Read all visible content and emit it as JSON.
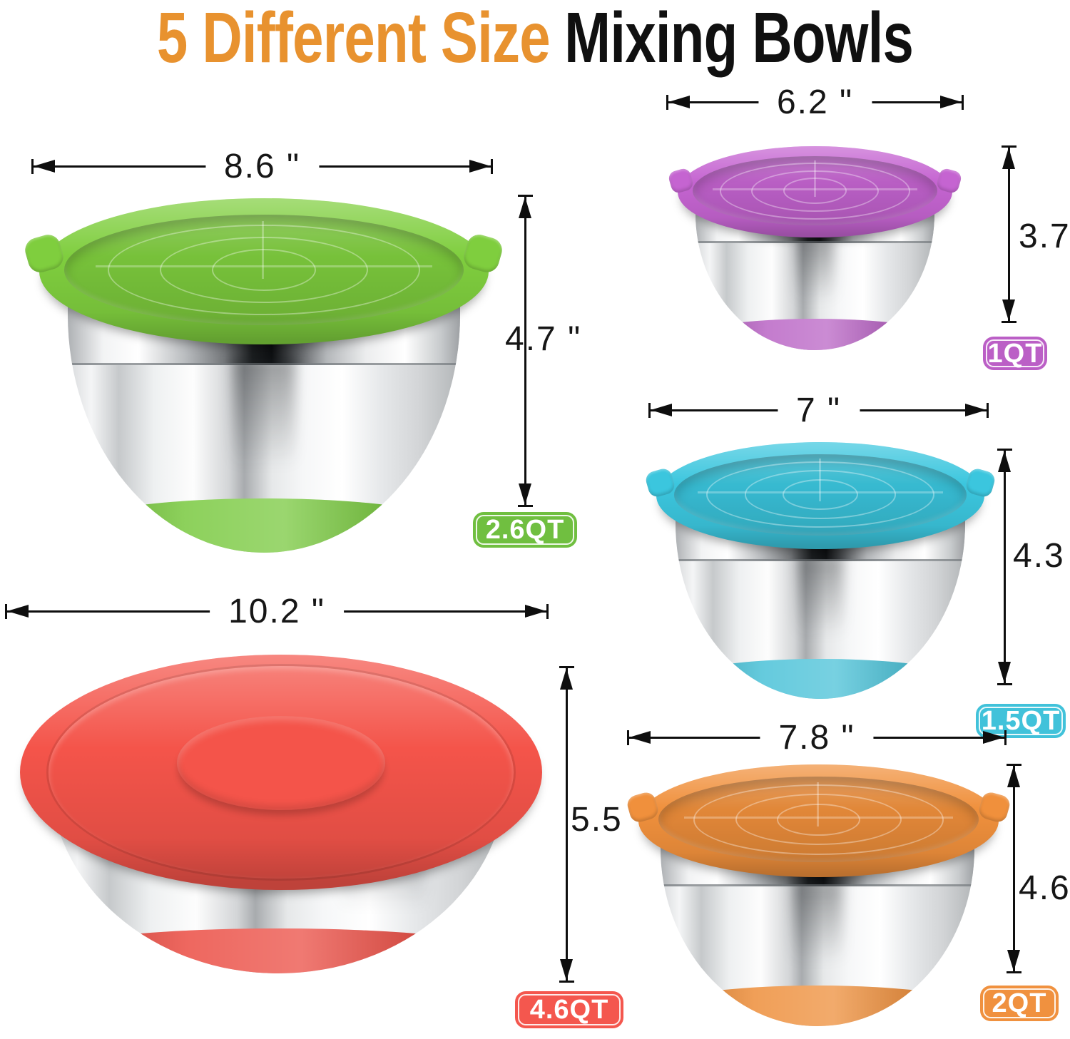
{
  "title": {
    "highlight": "5 Different Size",
    "rest": "Mixing Bowls",
    "highlight_color": "#E8922F",
    "rest_color": "#101010"
  },
  "arrow_color": "#0e0e0e",
  "bowls": [
    {
      "name": "green-bowl",
      "width_label": "8.6 \"",
      "height_label": "4.7 \"",
      "capacity": "2.6QT",
      "colors": {
        "lid": "#7fce3e",
        "base": "#74c738",
        "badge": "#70bf40"
      }
    },
    {
      "name": "purple-bowl",
      "width_label": "6.2 \"",
      "height_label": "3.7 \"",
      "capacity": "1QT",
      "colors": {
        "lid": "#c564d1",
        "base": "#b75fc3",
        "badge": "#bb5fc6"
      }
    },
    {
      "name": "blue-bowl",
      "width_label": "7 \"",
      "height_label": "4.3 \"",
      "capacity": "1.5QT",
      "colors": {
        "lid": "#3bc6de",
        "base": "#43bfd6",
        "badge": "#41c2da"
      }
    },
    {
      "name": "red-bowl",
      "width_label": "10.2 \"",
      "height_label": "5.5 \"",
      "capacity": "4.6QT",
      "colors": {
        "lid": "#f4544a",
        "base": "#ea463c",
        "badge": "#f4574e"
      }
    },
    {
      "name": "orange-bowl",
      "width_label": "7.8 \"",
      "height_label": "4.6 \"",
      "capacity": "2QT",
      "colors": {
        "lid": "#f0903c",
        "base": "#ed8a33",
        "badge": "#f0913f"
      }
    }
  ]
}
